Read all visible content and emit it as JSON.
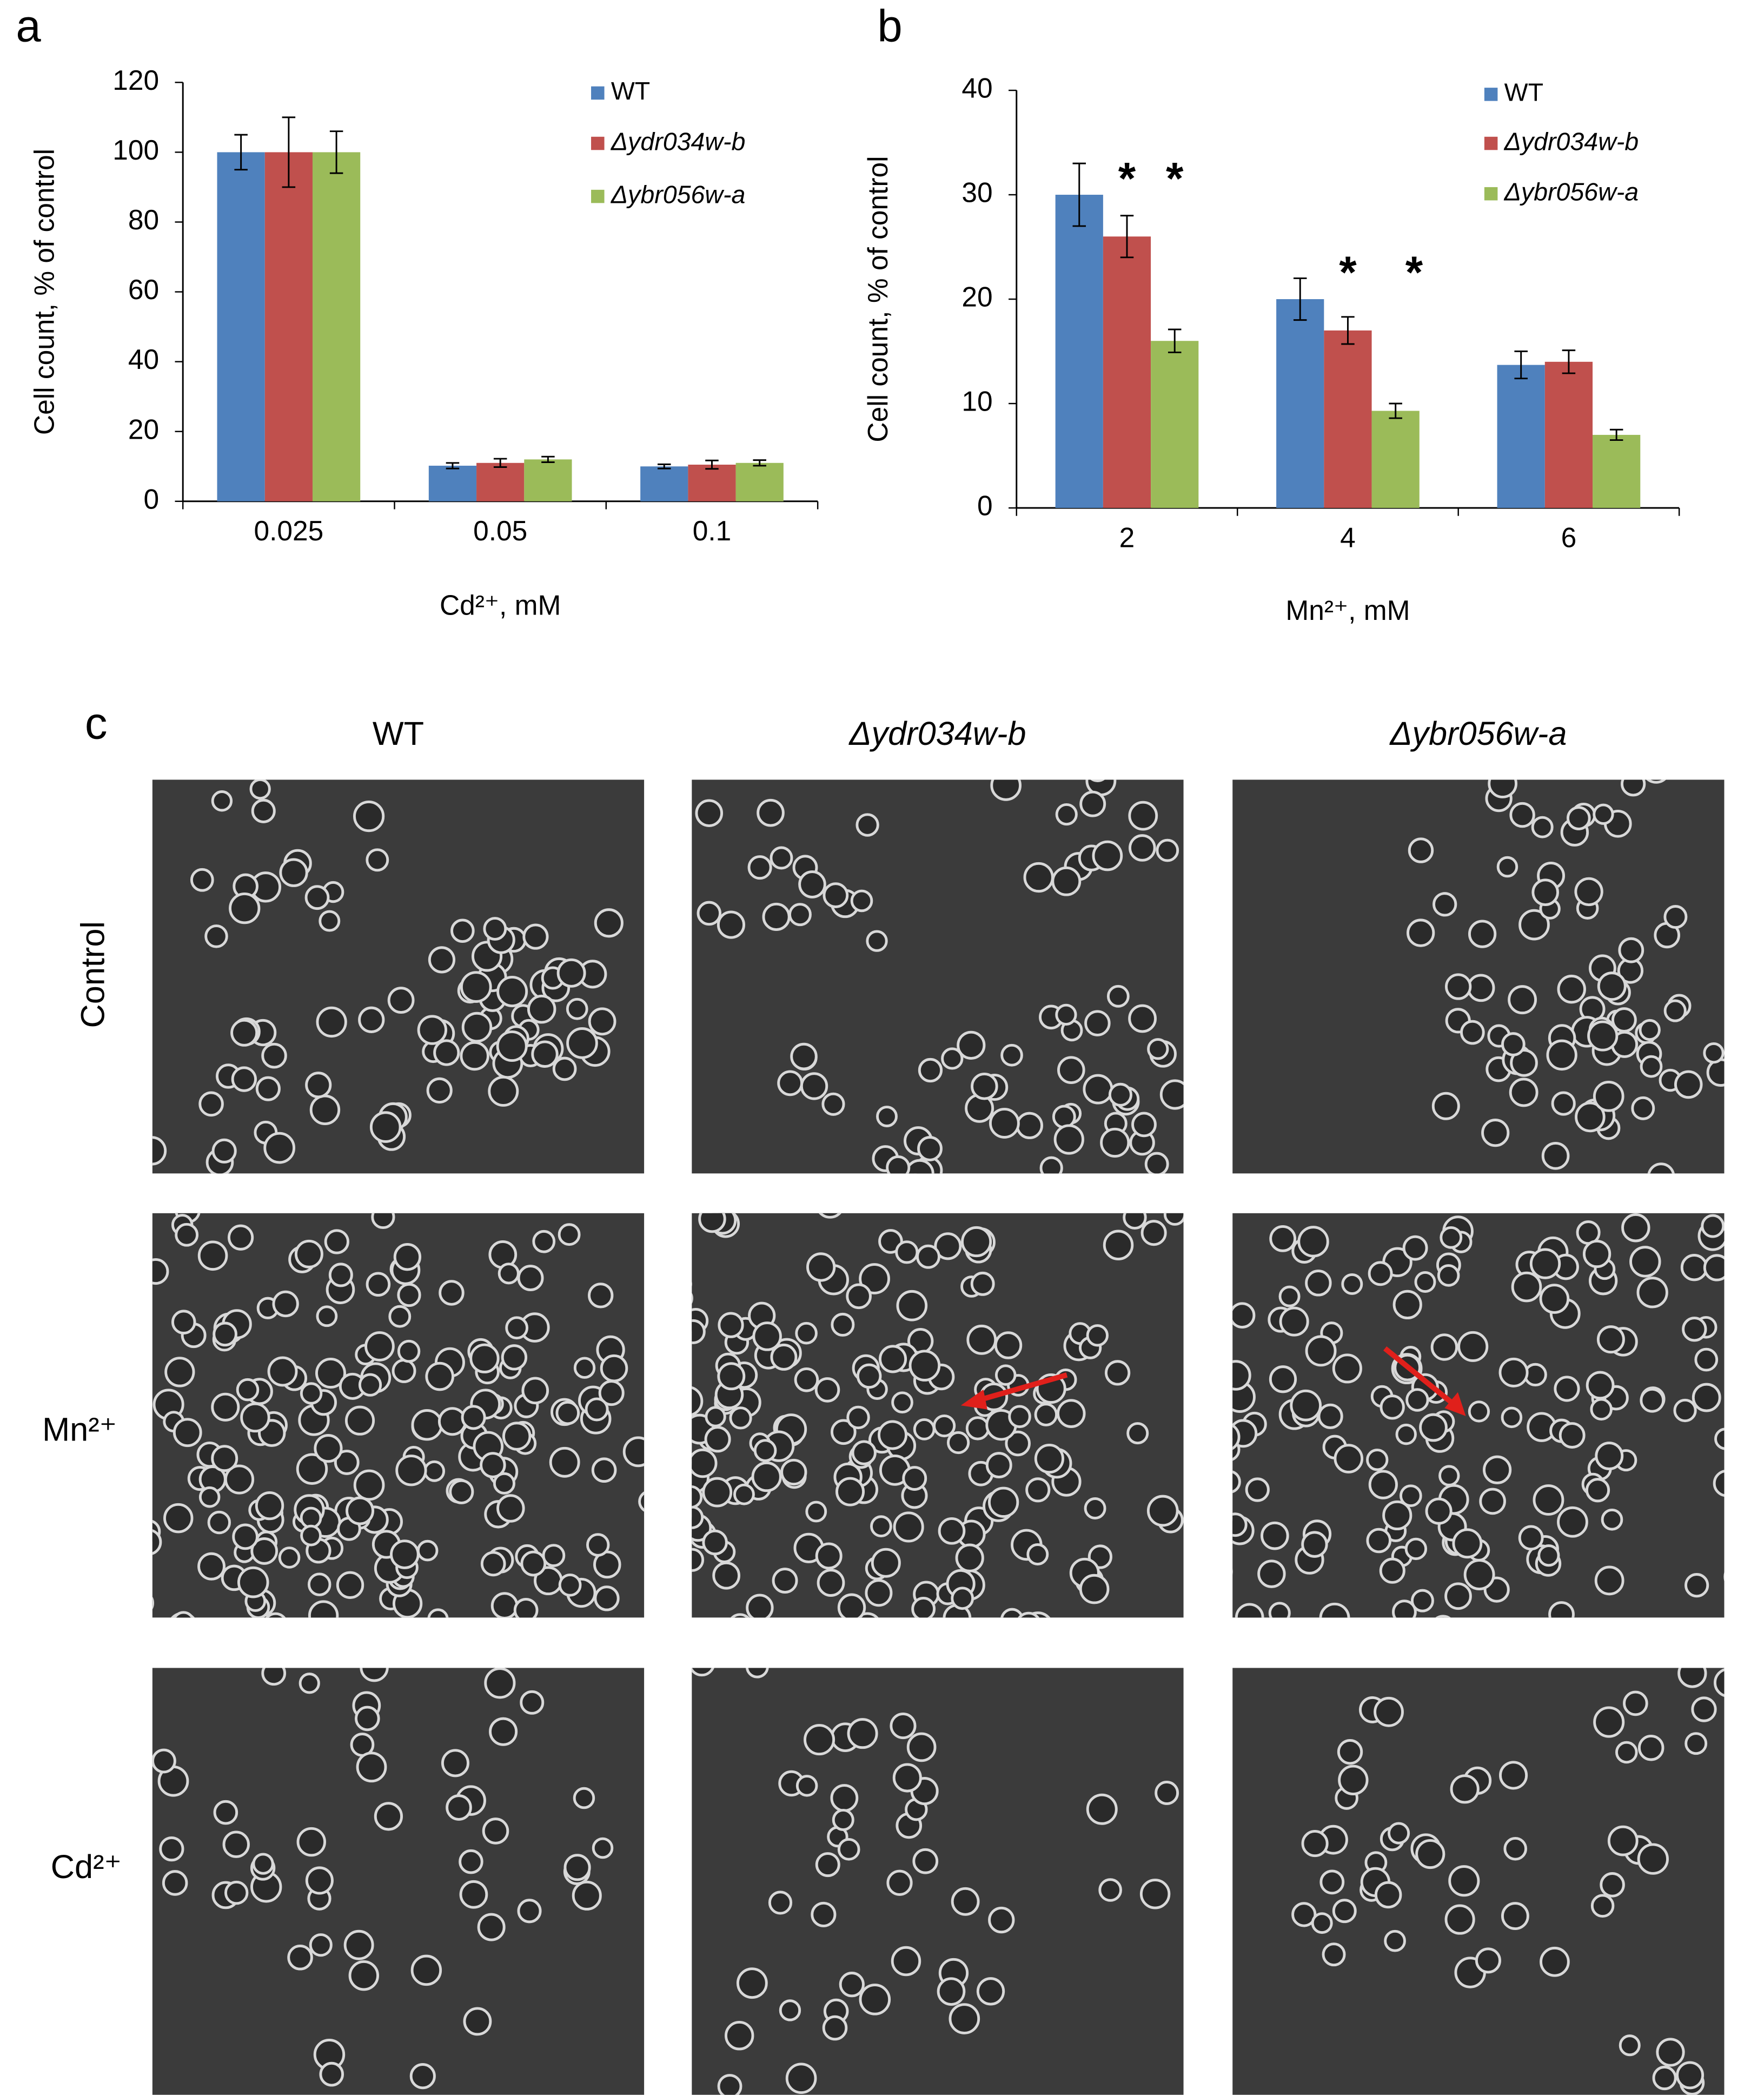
{
  "chart_data": [
    {
      "type": "bar",
      "panel": "a",
      "ylabel": "Cell count, % of control",
      "xlabel": "Cd²⁺, mM",
      "categories": [
        "0.025",
        "0.05",
        "0.1"
      ],
      "series": [
        {
          "name": "WT",
          "color": "#4f81bd",
          "values": [
            100,
            10.2,
            10
          ],
          "errors": [
            5,
            0.8,
            0.6
          ]
        },
        {
          "name": "Δydr034w-b",
          "color": "#c0504d",
          "values": [
            100,
            11,
            10.5
          ],
          "errors": [
            10,
            1.2,
            1.2
          ]
        },
        {
          "name": "Δybr056w-a",
          "color": "#9bbb59",
          "values": [
            100,
            12,
            11
          ],
          "errors": [
            6,
            0.8,
            0.8
          ]
        }
      ],
      "ylim": [
        0,
        120
      ],
      "yticks": [
        0,
        20,
        40,
        60,
        80,
        100,
        120
      ]
    },
    {
      "type": "bar",
      "panel": "b",
      "ylabel": "Cell count, % of control",
      "xlabel": "Mn²⁺, mM",
      "categories": [
        "2",
        "4",
        "6"
      ],
      "series": [
        {
          "name": "WT",
          "color": "#4f81bd",
          "values": [
            30,
            20,
            13.7
          ],
          "errors": [
            3,
            2,
            1.3
          ]
        },
        {
          "name": "Δydr034w-b",
          "color": "#c0504d",
          "values": [
            26,
            17,
            14
          ],
          "errors": [
            2,
            1.3,
            1.1
          ]
        },
        {
          "name": "Δybr056w-a",
          "color": "#9bbb59",
          "values": [
            16,
            9.3,
            7
          ],
          "errors": [
            1.1,
            0.7,
            0.5
          ]
        }
      ],
      "ylim": [
        0,
        40
      ],
      "yticks": [
        0,
        10,
        20,
        30,
        40
      ],
      "annotations": [
        "*",
        "*",
        "*",
        "*"
      ]
    }
  ],
  "panel_c": {
    "label": "c",
    "columns": [
      "WT",
      "Δydr034w-b",
      "Δybr056w-a"
    ],
    "rows": [
      "Control",
      "Mn²⁺",
      "Cd²⁺"
    ]
  }
}
